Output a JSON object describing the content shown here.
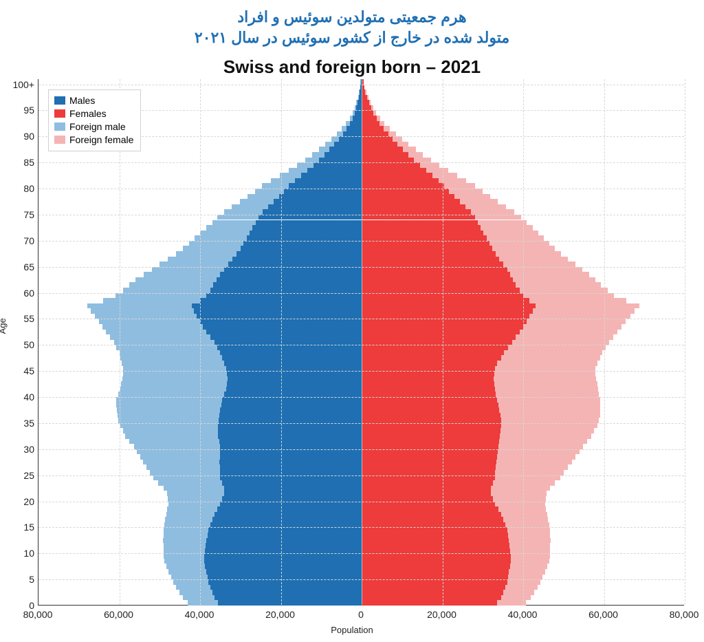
{
  "persian_title_line1": "هرم جمعیتی متولدین سوئیس و افراد",
  "persian_title_line2": "متولد شده در خارج از کشور سوئیس در سال ۲۰۲۱",
  "chart": {
    "type": "population-pyramid",
    "title": "Swiss and foreign born – 2021",
    "x_axis_label": "Population",
    "y_axis_label": "Age",
    "background_color": "#ffffff",
    "grid_color": "#d7d7d7",
    "axis_color": "#333333",
    "title_fontsize": 26,
    "tick_fontsize": 14,
    "axis_label_fontsize": 13,
    "x_min": -80000,
    "x_max": 80000,
    "x_tick_step": 20000,
    "x_tick_labels": [
      "80,000",
      "60,000",
      "40,000",
      "20,000",
      "0",
      "20,000",
      "40,000",
      "60,000",
      "80,000"
    ],
    "y_min": 0,
    "y_max": 101,
    "y_tick_step": 5,
    "y_tick_labels": [
      "0",
      "5",
      "10",
      "15",
      "20",
      "25",
      "30",
      "35",
      "40",
      "45",
      "50",
      "55",
      "60",
      "65",
      "70",
      "75",
      "80",
      "85",
      "90",
      "95",
      "100+"
    ],
    "legend": {
      "items": [
        {
          "label": "Males",
          "color": "#1f6fb2"
        },
        {
          "label": "Females",
          "color": "#ee3b3b"
        },
        {
          "label": "Foreign male",
          "color": "#8fbde0"
        },
        {
          "label": "Foreign female",
          "color": "#f5b4b4"
        }
      ]
    },
    "series_colors": {
      "males": "#1f6fb2",
      "females": "#ee3b3b",
      "foreign_male": "#8fbde0",
      "foreign_female": "#f5b4b4"
    },
    "ages": [
      0,
      1,
      2,
      3,
      4,
      5,
      6,
      7,
      8,
      9,
      10,
      11,
      12,
      13,
      14,
      15,
      16,
      17,
      18,
      19,
      20,
      21,
      22,
      23,
      24,
      25,
      26,
      27,
      28,
      29,
      30,
      31,
      32,
      33,
      34,
      35,
      36,
      37,
      38,
      39,
      40,
      41,
      42,
      43,
      44,
      45,
      46,
      47,
      48,
      49,
      50,
      51,
      52,
      53,
      54,
      55,
      56,
      57,
      58,
      59,
      60,
      61,
      62,
      63,
      64,
      65,
      66,
      67,
      68,
      69,
      70,
      71,
      72,
      73,
      74,
      75,
      76,
      77,
      78,
      79,
      80,
      81,
      82,
      83,
      84,
      85,
      86,
      87,
      88,
      89,
      90,
      91,
      92,
      93,
      94,
      95,
      96,
      97,
      98,
      99,
      100
    ],
    "males": [
      35500,
      36500,
      37000,
      37500,
      38000,
      38200,
      38500,
      38800,
      39000,
      39000,
      38800,
      38600,
      38500,
      38200,
      38000,
      37500,
      37000,
      36500,
      35800,
      35000,
      34500,
      34000,
      34000,
      34500,
      35000,
      35000,
      35100,
      35200,
      35000,
      35000,
      35000,
      35300,
      35500,
      35500,
      35500,
      35400,
      35200,
      35000,
      34800,
      34500,
      34000,
      33500,
      33300,
      33200,
      33300,
      33500,
      34000,
      34500,
      35000,
      35800,
      36500,
      37500,
      38500,
      39300,
      40000,
      40800,
      41500,
      42000,
      40000,
      38500,
      37500,
      36800,
      36000,
      35000,
      34000,
      33000,
      32000,
      31000,
      30000,
      29200,
      28500,
      27800,
      27000,
      26200,
      25500,
      24500,
      23200,
      21800,
      20500,
      19200,
      18000,
      16500,
      15000,
      13500,
      12000,
      10500,
      9200,
      8000,
      6800,
      5700,
      4600,
      3700,
      2900,
      2200,
      1700,
      1300,
      1000,
      700,
      500,
      300,
      250
    ],
    "females": [
      33500,
      34500,
      35000,
      35500,
      36000,
      36200,
      36500,
      36800,
      37000,
      37000,
      36800,
      36600,
      36500,
      36200,
      36000,
      35500,
      35000,
      34500,
      33800,
      33000,
      32500,
      32000,
      32000,
      32500,
      33000,
      33000,
      33200,
      33400,
      33500,
      33700,
      33800,
      34000,
      34200,
      34400,
      34500,
      34500,
      34300,
      34000,
      33800,
      33500,
      33200,
      33000,
      32800,
      32700,
      32800,
      33000,
      33600,
      34500,
      35300,
      36200,
      37200,
      38200,
      39200,
      40000,
      40800,
      41600,
      42300,
      43000,
      41500,
      40000,
      39200,
      38200,
      37500,
      36800,
      36000,
      35000,
      34000,
      33200,
      32400,
      31700,
      31000,
      30200,
      29500,
      28700,
      28000,
      27000,
      25700,
      24300,
      23000,
      21700,
      20500,
      19000,
      17500,
      16000,
      14500,
      13000,
      11500,
      10200,
      8900,
      7700,
      6600,
      5500,
      4500,
      3700,
      2900,
      2300,
      1800,
      1300,
      900,
      600,
      450
    ],
    "foreign_male": [
      7500,
      7800,
      8100,
      8400,
      8700,
      9000,
      9300,
      9600,
      9900,
      10100,
      10300,
      10500,
      10700,
      10900,
      11100,
      11300,
      11600,
      11900,
      12300,
      12800,
      13500,
      14200,
      15000,
      15800,
      16600,
      17400,
      18200,
      19000,
      19800,
      20600,
      21400,
      22200,
      23000,
      23600,
      24200,
      24800,
      25200,
      25600,
      26000,
      26200,
      26300,
      26300,
      26200,
      26000,
      25800,
      25600,
      25400,
      25200,
      25000,
      24900,
      24800,
      24800,
      24800,
      24900,
      25000,
      25200,
      25600,
      26000,
      24000,
      22500,
      21500,
      20800,
      20000,
      19000,
      18000,
      17000,
      16000,
      15000,
      14200,
      13500,
      12800,
      12200,
      11500,
      10800,
      10200,
      9600,
      9000,
      8400,
      7800,
      7200,
      6600,
      5900,
      5200,
      4600,
      4000,
      3500,
      3000,
      2600,
      2200,
      1800,
      1500,
      1200,
      950,
      750,
      550,
      420,
      320,
      230,
      160,
      100,
      80
    ],
    "foreign_female": [
      7100,
      7400,
      7700,
      8000,
      8300,
      8600,
      8900,
      9200,
      9500,
      9700,
      9900,
      10100,
      10300,
      10500,
      10700,
      10900,
      11200,
      11500,
      11900,
      12400,
      13100,
      13800,
      14600,
      15400,
      16200,
      17000,
      17800,
      18600,
      19400,
      20200,
      21000,
      21800,
      22600,
      23200,
      23800,
      24300,
      24700,
      25000,
      25300,
      25500,
      25600,
      25600,
      25500,
      25300,
      25100,
      24900,
      24700,
      24500,
      24300,
      24200,
      24100,
      24100,
      24200,
      24400,
      24600,
      24900,
      25300,
      25700,
      24000,
      22500,
      21800,
      21000,
      20300,
      19500,
      18700,
      17900,
      17000,
      16200,
      15500,
      14800,
      14100,
      13500,
      12800,
      12100,
      11500,
      10800,
      10100,
      9400,
      8800,
      8200,
      7600,
      6900,
      6200,
      5500,
      4800,
      4200,
      3700,
      3200,
      2700,
      2300,
      1900,
      1500,
      1200,
      950,
      750,
      580,
      440,
      320,
      220,
      140,
      110
    ]
  }
}
